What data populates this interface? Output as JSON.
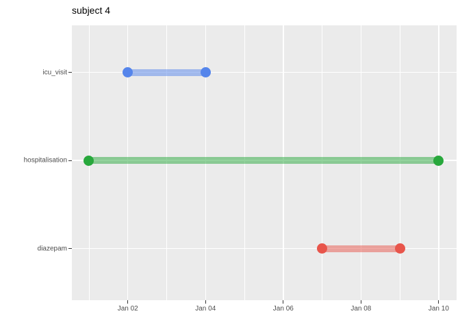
{
  "title": "subject 4",
  "chart_data": {
    "type": "bar",
    "subtype": "gantt-range-timeline",
    "title": "subject 4",
    "categories": [
      "icu_visit",
      "hospitalisation",
      "diazepam"
    ],
    "series": [
      {
        "name": "icu_visit",
        "start_label": "Jan 02",
        "end_label": "Jan 04",
        "start_day": 2,
        "end_day": 4,
        "color": "#5585EB"
      },
      {
        "name": "hospitalisation",
        "start_label": "Jan 01",
        "end_label": "Jan 10",
        "start_day": 1,
        "end_day": 10,
        "color": "#28A83C"
      },
      {
        "name": "diazepam",
        "start_label": "Jan 07",
        "end_label": "Jan 09",
        "start_day": 7,
        "end_day": 9,
        "color": "#E8554B"
      }
    ],
    "x_axis": {
      "tick_labels": [
        "Jan 02",
        "Jan 04",
        "Jan 06",
        "Jan 08",
        "Jan 10"
      ],
      "tick_days": [
        2,
        4,
        6,
        8,
        10
      ],
      "minor_grid_days": [
        1,
        3,
        5,
        7,
        9
      ],
      "range_days": [
        0.56,
        10.46
      ]
    },
    "y_axis": {
      "tick_labels": [
        "icu_visit",
        "hospitalisation",
        "diazepam"
      ]
    },
    "style": {
      "panel_bg": "#EBEBEB",
      "grid_color": "#FFFFFF",
      "axis_text_color": "#4D4D4D",
      "tick_mark_color": "#333333",
      "title_color": "#000000",
      "band_alpha": 0.5
    },
    "legend": "none",
    "grid": "on"
  }
}
